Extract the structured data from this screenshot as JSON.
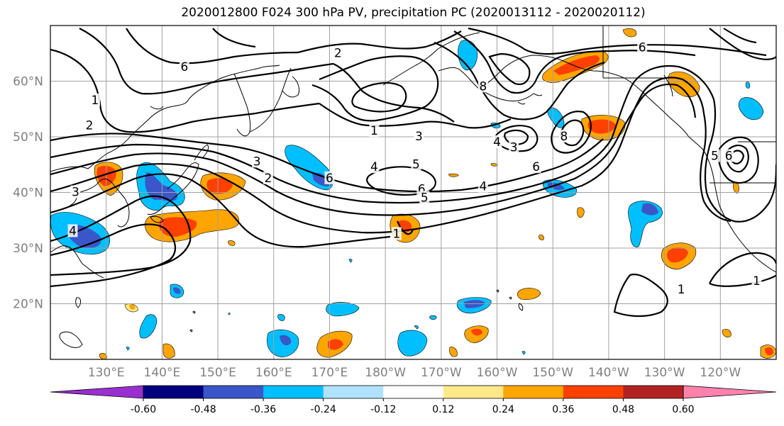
{
  "title": "2020012800 F024 300 hPa PV, precipitation PC (2020013112 - 2020020112)",
  "map": {
    "lon_range": [
      120,
      250
    ],
    "lat_range": [
      10,
      70
    ],
    "lat_ticks": [
      {
        "lat": 20,
        "label": "20°N"
      },
      {
        "lat": 30,
        "label": "30°N"
      },
      {
        "lat": 40,
        "label": "40°N"
      },
      {
        "lat": 50,
        "label": "50°N"
      },
      {
        "lat": 60,
        "label": "60°N"
      }
    ],
    "lon_ticks": [
      {
        "lon": 130,
        "label": "130°E"
      },
      {
        "lon": 140,
        "label": "140°E"
      },
      {
        "lon": 150,
        "label": "150°E"
      },
      {
        "lon": 160,
        "label": "160°E"
      },
      {
        "lon": 170,
        "label": "170°E"
      },
      {
        "lon": 180,
        "label": "180°W"
      },
      {
        "lon": 190,
        "label": "170°W"
      },
      {
        "lon": 200,
        "label": "160°W"
      },
      {
        "lon": 210,
        "label": "150°W"
      },
      {
        "lon": 220,
        "label": "140°W"
      },
      {
        "lon": 230,
        "label": "130°W"
      },
      {
        "lon": 240,
        "label": "120°W"
      }
    ],
    "gridlines": true,
    "pv_contour_labels": [
      {
        "text": "2",
        "lon": 171.5,
        "lat": 65
      },
      {
        "text": "6",
        "lon": 144,
        "lat": 62.5
      },
      {
        "text": "1",
        "lon": 128,
        "lat": 56.5
      },
      {
        "text": "2",
        "lon": 127,
        "lat": 52
      },
      {
        "text": "1",
        "lon": 178,
        "lat": 51
      },
      {
        "text": "3",
        "lon": 186,
        "lat": 50
      },
      {
        "text": "8",
        "lon": 197.5,
        "lat": 59
      },
      {
        "text": "4",
        "lon": 200,
        "lat": 49
      },
      {
        "text": "3",
        "lon": 203,
        "lat": 48
      },
      {
        "text": "8",
        "lon": 212,
        "lat": 50
      },
      {
        "text": "6",
        "lon": 226,
        "lat": 66
      },
      {
        "text": "4",
        "lon": 178,
        "lat": 44.5
      },
      {
        "text": "5",
        "lon": 185.5,
        "lat": 45
      },
      {
        "text": "6",
        "lon": 170,
        "lat": 42.5
      },
      {
        "text": "6",
        "lon": 186.5,
        "lat": 40.5
      },
      {
        "text": "5",
        "lon": 187,
        "lat": 39
      },
      {
        "text": "4",
        "lon": 197.5,
        "lat": 41
      },
      {
        "text": "6",
        "lon": 207,
        "lat": 44.5
      },
      {
        "text": "3",
        "lon": 157,
        "lat": 45.5
      },
      {
        "text": "2",
        "lon": 159,
        "lat": 42.5
      },
      {
        "text": "3",
        "lon": 124.5,
        "lat": 40
      },
      {
        "text": "4",
        "lon": 124,
        "lat": 33
      },
      {
        "text": "1",
        "lon": 182,
        "lat": 32.5
      },
      {
        "text": "5",
        "lon": 239,
        "lat": 46.5
      },
      {
        "text": "6",
        "lon": 241.5,
        "lat": 46.5
      },
      {
        "text": "1",
        "lon": 233,
        "lat": 22.5
      },
      {
        "text": "1",
        "lon": 246.5,
        "lat": 24
      }
    ]
  },
  "colorbar": {
    "levels": [
      "-0.60",
      "-0.48",
      "-0.36",
      "-0.24",
      "-0.12",
      "0.12",
      "0.24",
      "0.36",
      "0.48",
      "0.60"
    ],
    "colors": [
      "#9a2fcf",
      "#00007f",
      "#3a56c8",
      "#00bfff",
      "#b0e2ff",
      "#ffffff",
      "#ffe88a",
      "#ffa500",
      "#ff4000",
      "#b22222",
      "#ff82ab"
    ],
    "extend": "both"
  }
}
